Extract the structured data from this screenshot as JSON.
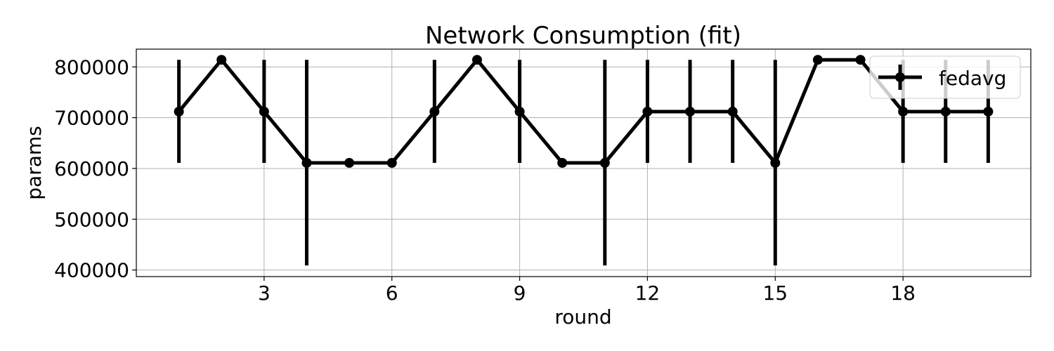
{
  "chart_data": {
    "type": "line",
    "title": "Network Consumption (fit)",
    "xlabel": "round",
    "ylabel": "params",
    "xlim": [
      0,
      21
    ],
    "ylim": [
      387000,
      835000
    ],
    "xticks": [
      3,
      6,
      9,
      12,
      15,
      18
    ],
    "yticks": [
      400000,
      500000,
      600000,
      700000,
      800000
    ],
    "grid": true,
    "legend_position": "top-right",
    "x": [
      1,
      2,
      3,
      4,
      5,
      6,
      7,
      8,
      9,
      10,
      11,
      12,
      13,
      14,
      15,
      16,
      17,
      18,
      19,
      20
    ],
    "series": [
      {
        "name": "fedavg",
        "color": "#000000",
        "values": [
          712000,
          814000,
          712000,
          611000,
          611000,
          611000,
          712000,
          814000,
          712000,
          611000,
          611000,
          712000,
          712000,
          712000,
          611000,
          814000,
          814000,
          712000,
          712000,
          712000
        ],
        "error_low": [
          611000,
          814000,
          611000,
          409000,
          611000,
          611000,
          611000,
          814000,
          611000,
          611000,
          409000,
          611000,
          611000,
          611000,
          409000,
          814000,
          814000,
          611000,
          611000,
          611000
        ],
        "error_high": [
          814000,
          814000,
          814000,
          814000,
          611000,
          611000,
          814000,
          814000,
          814000,
          611000,
          814000,
          814000,
          814000,
          814000,
          814000,
          814000,
          814000,
          814000,
          814000,
          814000
        ]
      }
    ]
  }
}
